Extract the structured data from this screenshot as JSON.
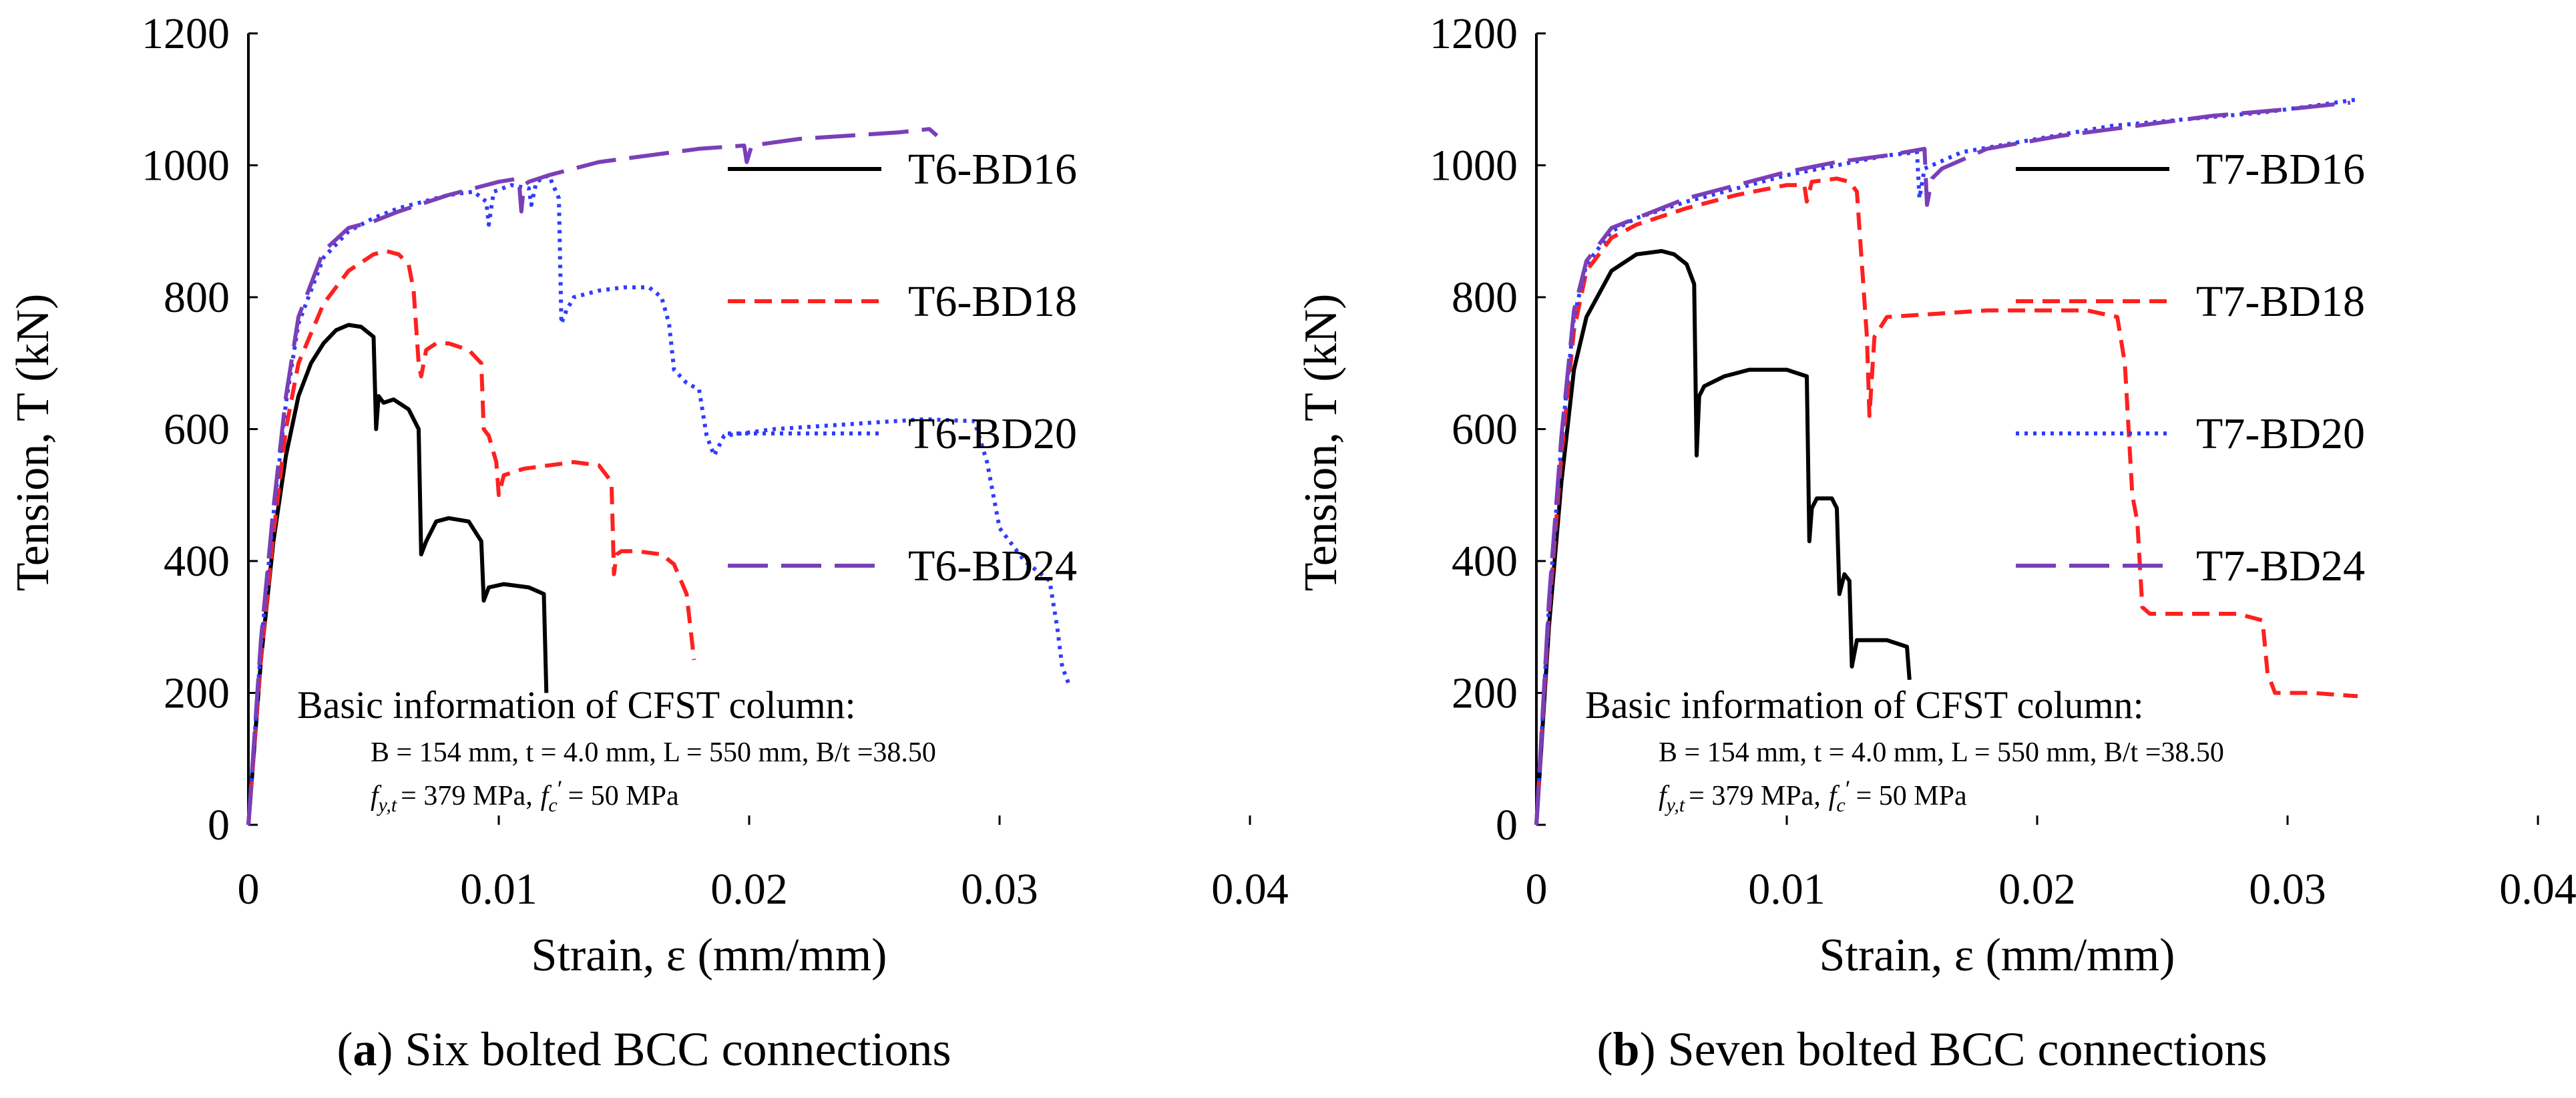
{
  "colors": {
    "black": "#000000",
    "red": "#ff2020",
    "blue": "#2f3cff",
    "purple": "#7a3fb8"
  },
  "chart_data": [
    {
      "type": "line",
      "panel_id": "a",
      "caption_letter": "a",
      "caption_text": "Six bolted BCC connections",
      "xlabel": "Strain, ε (mm/mm)",
      "ylabel": "Tension, T (kN)",
      "xlim": [
        0,
        0.04
      ],
      "ylim": [
        0,
        1200
      ],
      "xticks": [
        0,
        0.01,
        0.02,
        0.03,
        0.04
      ],
      "xtick_labels": [
        "0",
        "0.01",
        "0.02",
        "0.03",
        "0.04"
      ],
      "yticks": [
        0,
        200,
        400,
        600,
        800,
        1000,
        1200
      ],
      "ytick_labels": [
        "0",
        "200",
        "400",
        "600",
        "800",
        "1000",
        "1200"
      ],
      "legend_position": "top-right",
      "info_title": "Basic information of CFST column:",
      "info_line1": "B = 154 mm, t = 4.0 mm, L = 550 mm, B/t =38.50",
      "info_fy_symbol": "f",
      "info_fy_sub": "y,t",
      "info_fy_value": "= 379 MPa,",
      "info_fc_symbol": "f",
      "info_fc_prime": "c",
      "info_fc_mark": "′",
      "info_fc_value": "= 50 MPa",
      "series": [
        {
          "name": "T6-BD16",
          "color": "#000000",
          "dash": "solid",
          "x": [
            0,
            0.0005,
            0.001,
            0.0015,
            0.002,
            0.0025,
            0.003,
            0.0035,
            0.004,
            0.0045,
            0.005,
            0.0051,
            0.0052,
            0.0054,
            0.0058,
            0.0064,
            0.0068,
            0.0069,
            0.0071,
            0.0075,
            0.008,
            0.0088,
            0.0093,
            0.0094,
            0.0096,
            0.0102,
            0.0112,
            0.0118,
            0.0119
          ],
          "y": [
            0,
            250,
            430,
            560,
            650,
            700,
            730,
            750,
            758,
            755,
            740,
            600,
            650,
            640,
            645,
            630,
            600,
            410,
            430,
            460,
            465,
            460,
            430,
            340,
            360,
            365,
            360,
            350,
            200
          ]
        },
        {
          "name": "T6-BD18",
          "color": "#ff2020",
          "dash": "dashed",
          "x": [
            0,
            0.0005,
            0.001,
            0.0015,
            0.002,
            0.003,
            0.004,
            0.005,
            0.0055,
            0.006,
            0.0064,
            0.0066,
            0.0068,
            0.0069,
            0.0071,
            0.0075,
            0.008,
            0.0088,
            0.0093,
            0.0094,
            0.0096,
            0.0099,
            0.01,
            0.0102,
            0.011,
            0.012,
            0.013,
            0.014,
            0.0145,
            0.0146,
            0.0147,
            0.0149,
            0.0155,
            0.0165,
            0.017,
            0.0175,
            0.0178
          ],
          "y": [
            0,
            250,
            440,
            600,
            700,
            790,
            840,
            865,
            870,
            865,
            850,
            810,
            700,
            680,
            720,
            730,
            730,
            720,
            700,
            600,
            590,
            550,
            500,
            530,
            540,
            545,
            550,
            545,
            520,
            380,
            410,
            415,
            415,
            410,
            395,
            350,
            250
          ]
        },
        {
          "name": "T6-BD20",
          "color": "#2f3cff",
          "dash": "dotted",
          "x": [
            0,
            0.0005,
            0.001,
            0.0015,
            0.002,
            0.003,
            0.004,
            0.005,
            0.006,
            0.007,
            0.008,
            0.009,
            0.0095,
            0.0096,
            0.0098,
            0.0105,
            0.0112,
            0.0113,
            0.0115,
            0.012,
            0.0124,
            0.0125,
            0.0127,
            0.013,
            0.014,
            0.015,
            0.016,
            0.0165,
            0.0168,
            0.017,
            0.0175,
            0.018,
            0.0183,
            0.0186,
            0.019,
            0.021,
            0.023,
            0.025,
            0.027,
            0.029,
            0.0295,
            0.03,
            0.031,
            0.032,
            0.0323,
            0.0325,
            0.0328
          ],
          "y": [
            0,
            270,
            470,
            640,
            760,
            860,
            900,
            920,
            935,
            945,
            955,
            960,
            945,
            910,
            960,
            970,
            965,
            940,
            975,
            985,
            950,
            760,
            780,
            800,
            810,
            815,
            815,
            800,
            760,
            690,
            670,
            660,
            590,
            560,
            590,
            600,
            605,
            610,
            615,
            612,
            550,
            450,
            400,
            370,
            300,
            240,
            210
          ]
        },
        {
          "name": "T6-BD24",
          "color": "#7a3fb8",
          "dash": "longdash",
          "x": [
            0,
            0.0005,
            0.001,
            0.0015,
            0.002,
            0.003,
            0.004,
            0.005,
            0.006,
            0.008,
            0.01,
            0.0108,
            0.0109,
            0.011,
            0.0112,
            0.012,
            0.014,
            0.016,
            0.018,
            0.0198,
            0.0199,
            0.0201,
            0.022,
            0.024,
            0.026,
            0.0272,
            0.0275
          ],
          "y": [
            0,
            280,
            480,
            650,
            770,
            870,
            905,
            915,
            930,
            955,
            975,
            980,
            930,
            970,
            975,
            985,
            1005,
            1015,
            1025,
            1030,
            1005,
            1030,
            1040,
            1045,
            1050,
            1055,
            1045
          ]
        }
      ]
    },
    {
      "type": "line",
      "panel_id": "b",
      "caption_letter": "b",
      "caption_text": "Seven bolted BCC connections",
      "xlabel": "Strain, ε (mm/mm)",
      "ylabel": "Tension, T (kN)",
      "xlim": [
        0,
        0.04
      ],
      "ylim": [
        0,
        1200
      ],
      "xticks": [
        0,
        0.01,
        0.02,
        0.03,
        0.04
      ],
      "xtick_labels": [
        "0",
        "0.01",
        "0.02",
        "0.03",
        "0.04"
      ],
      "yticks": [
        0,
        200,
        400,
        600,
        800,
        1000,
        1200
      ],
      "ytick_labels": [
        "0",
        "200",
        "400",
        "600",
        "800",
        "1000",
        "1200"
      ],
      "legend_position": "top-right",
      "info_title": "Basic information of CFST column:",
      "info_line1": "B = 154 mm, t = 4.0 mm, L = 550 mm, B/t =38.50",
      "info_fy_symbol": "f",
      "info_fy_sub": "y,t",
      "info_fy_value": "= 379 MPa,",
      "info_fc_symbol": "f",
      "info_fc_prime": "c",
      "info_fc_mark": "′",
      "info_fc_value": "= 50 MPa",
      "series": [
        {
          "name": "T7-BD16",
          "color": "#000000",
          "dash": "solid",
          "x": [
            0,
            0.0005,
            0.001,
            0.0015,
            0.002,
            0.003,
            0.004,
            0.005,
            0.0055,
            0.006,
            0.0063,
            0.0064,
            0.0065,
            0.0067,
            0.0075,
            0.0085,
            0.01,
            0.0108,
            0.0109,
            0.011,
            0.0112,
            0.0118,
            0.012,
            0.0121,
            0.0123,
            0.0125,
            0.0126,
            0.0128,
            0.014,
            0.0148,
            0.0149
          ],
          "y": [
            0,
            300,
            520,
            690,
            770,
            840,
            865,
            870,
            865,
            850,
            820,
            560,
            650,
            665,
            680,
            690,
            690,
            680,
            430,
            480,
            495,
            495,
            480,
            350,
            380,
            370,
            240,
            280,
            280,
            270,
            220
          ]
        },
        {
          "name": "T7-BD18",
          "color": "#ff2020",
          "dash": "dashed",
          "x": [
            0,
            0.0005,
            0.001,
            0.0015,
            0.002,
            0.003,
            0.004,
            0.006,
            0.008,
            0.01,
            0.0107,
            0.0108,
            0.011,
            0.012,
            0.0125,
            0.0128,
            0.013,
            0.0132,
            0.0133,
            0.0135,
            0.014,
            0.016,
            0.018,
            0.02,
            0.022,
            0.0232,
            0.0235,
            0.0238,
            0.024,
            0.0242,
            0.0245,
            0.026,
            0.028,
            0.029,
            0.0292,
            0.0295,
            0.031,
            0.0328
          ],
          "y": [
            0,
            320,
            560,
            750,
            840,
            890,
            910,
            935,
            955,
            970,
            970,
            945,
            975,
            980,
            975,
            960,
            850,
            740,
            620,
            740,
            770,
            775,
            780,
            780,
            780,
            770,
            700,
            500,
            460,
            330,
            320,
            320,
            320,
            310,
            230,
            200,
            200,
            195
          ]
        },
        {
          "name": "T7-BD20",
          "color": "#2f3cff",
          "dash": "dotted",
          "x": [
            0,
            0.0005,
            0.001,
            0.0015,
            0.002,
            0.003,
            0.004,
            0.006,
            0.008,
            0.01,
            0.012,
            0.014,
            0.0152,
            0.0153,
            0.0155,
            0.0158,
            0.017,
            0.02,
            0.023,
            0.026,
            0.029,
            0.031,
            0.0328
          ],
          "y": [
            0,
            330,
            580,
            770,
            850,
            900,
            920,
            945,
            965,
            985,
            1000,
            1015,
            1020,
            950,
            995,
            1000,
            1020,
            1040,
            1060,
            1070,
            1080,
            1090,
            1100
          ]
        },
        {
          "name": "T7-BD24",
          "color": "#7a3fb8",
          "dash": "longdash",
          "x": [
            0,
            0.0005,
            0.001,
            0.0015,
            0.002,
            0.003,
            0.004,
            0.006,
            0.008,
            0.01,
            0.012,
            0.014,
            0.0155,
            0.0156,
            0.0158,
            0.0162,
            0.018,
            0.021,
            0.024,
            0.027,
            0.03,
            0.0325
          ],
          "y": [
            0,
            340,
            590,
            780,
            855,
            905,
            920,
            950,
            970,
            990,
            1005,
            1015,
            1025,
            940,
            980,
            995,
            1025,
            1045,
            1060,
            1075,
            1085,
            1095
          ]
        }
      ]
    }
  ]
}
